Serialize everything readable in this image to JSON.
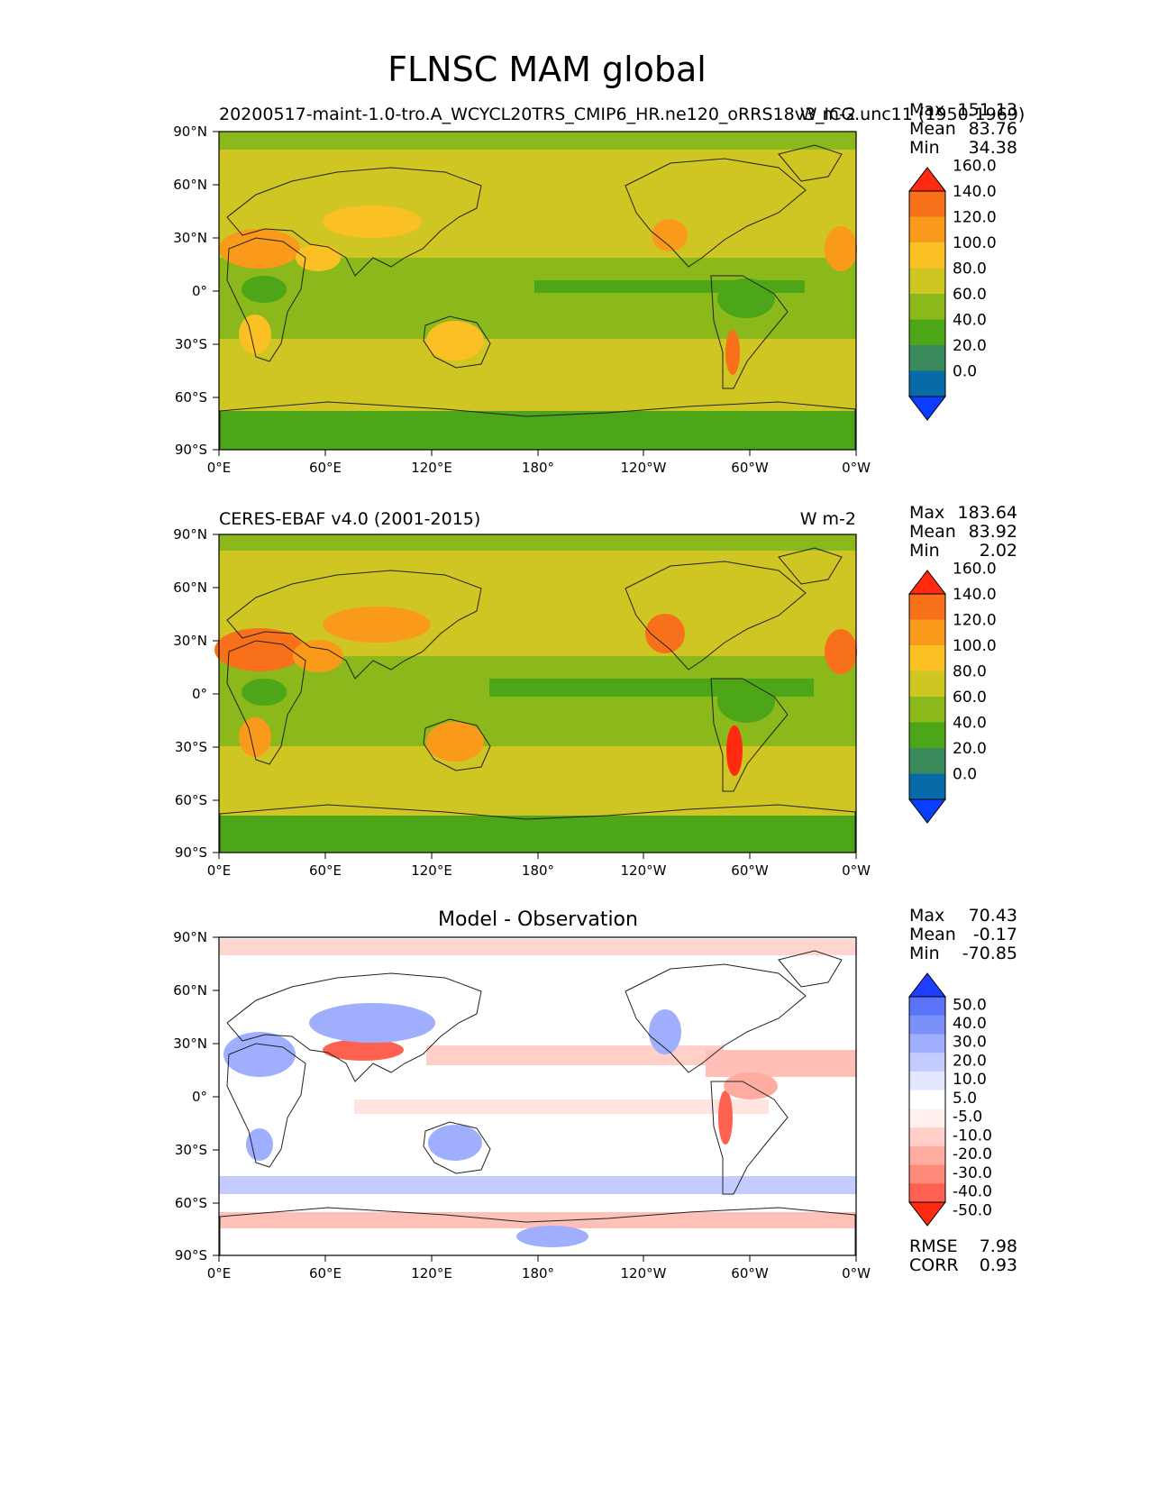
{
  "figure": {
    "title": "FLNSC MAM global"
  },
  "axes": {
    "lat_labels": [
      "90°N",
      "60°N",
      "30°N",
      "0°",
      "30°S",
      "60°S",
      "90°S"
    ],
    "lon_labels": [
      "0°E",
      "60°E",
      "120°E",
      "180°",
      "120°W",
      "60°W",
      "0°W"
    ]
  },
  "panels": [
    {
      "id": "test",
      "title_left": "20200517-maint-1.0-tro.A_WCYCL20TRS_CMIP6_HR.ne120_oRRS18v3_ICG.unc11 (1950-1969)",
      "title_right": "W m-2",
      "title_center": "",
      "stats": {
        "max_label": "Max",
        "max": "151.13",
        "mean_label": "Mean",
        "mean": "83.76",
        "min_label": "Min",
        "min": "34.38"
      }
    },
    {
      "id": "reference",
      "title_left": "CERES-EBAF v4.0 (2001-2015)",
      "title_right": "W m-2",
      "title_center": "",
      "stats": {
        "max_label": "Max",
        "max": "183.64",
        "mean_label": "Mean",
        "mean": "83.92",
        "min_label": "Min",
        "min": "2.02"
      }
    },
    {
      "id": "difference",
      "title_left": "",
      "title_right": "",
      "title_center": "Model - Observation",
      "stats": {
        "max_label": "Max",
        "max": "70.43",
        "mean_label": "Mean",
        "mean": "-0.17",
        "min_label": "Min",
        "min": "-70.85"
      },
      "metrics": {
        "rmse_label": "RMSE",
        "rmse": "7.98",
        "corr_label": "CORR",
        "corr": "0.93"
      }
    }
  ],
  "colorbars": {
    "fields": {
      "labels": [
        "0.0",
        "20.0",
        "40.0",
        "60.0",
        "80.0",
        "100.0",
        "120.0",
        "140.0",
        "160.0"
      ],
      "colors": [
        "#0a3dff",
        "#066ba8",
        "#3a8a5c",
        "#4da618",
        "#8bb81a",
        "#cfc624",
        "#fbc023",
        "#fa9a1a",
        "#f8701a",
        "#ff2a0f"
      ]
    },
    "diff": {
      "labels": [
        "50.0",
        "40.0",
        "30.0",
        "20.0",
        "10.0",
        "5.0",
        "-5.0",
        "-10.0",
        "-20.0",
        "-30.0",
        "-40.0",
        "-50.0"
      ],
      "colors": [
        "#ff2a0f",
        "#ff6150",
        "#ff8a7a",
        "#ffaca0",
        "#ffcfc8",
        "#fff0ee",
        "#ffffff",
        "#e3e6ff",
        "#c4ccff",
        "#9faffd",
        "#7b91fa",
        "#5a74f9",
        "#1e3dff"
      ]
    }
  },
  "palette": {
    "land_outline": "#222222",
    "field_base": "#cfc624",
    "diff_pos": "#ffb0a6",
    "diff_neg": "#a8b8ff"
  }
}
